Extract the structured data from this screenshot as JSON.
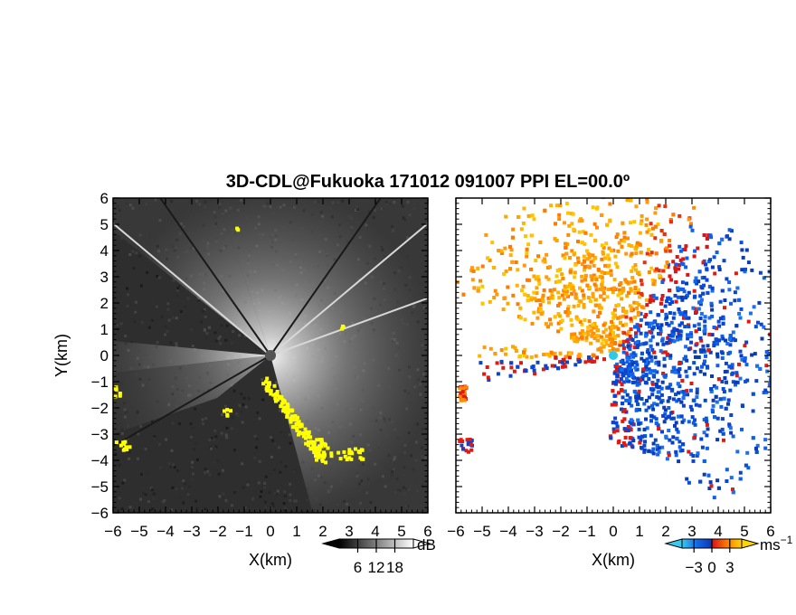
{
  "title": "3D-CDL@Fukuoka 171012 091007 PPI EL=00.0º",
  "chart_data": [
    {
      "type": "heatmap",
      "panel": "left",
      "quantity": "reflectivity",
      "xlabel": "X(km)",
      "ylabel": "Y(km)",
      "xlim": [
        -6,
        6
      ],
      "ylim": [
        -6,
        6
      ],
      "xticks": [
        "−6",
        "−5",
        "−4",
        "−3",
        "−2",
        "−1",
        "0",
        "1",
        "2",
        "3",
        "4",
        "5",
        "6"
      ],
      "yticks": [
        "6",
        "5",
        "4",
        "3",
        "2",
        "1",
        "0",
        "−1",
        "−2",
        "−3",
        "−4",
        "−5",
        "−6"
      ],
      "colorbar": {
        "unit": "dB",
        "ticks": [
          "6",
          "12",
          "18"
        ],
        "tick_values": [
          6,
          12,
          18
        ],
        "range": [
          0,
          24
        ],
        "colors": [
          "#000000",
          "#ffffff"
        ]
      },
      "highlight_color": "#ffff00",
      "colormap": [
        "#000000",
        "#ffffff"
      ]
    },
    {
      "type": "heatmap",
      "panel": "right",
      "quantity": "radial velocity",
      "xlabel": "X(km)",
      "ylabel": "",
      "xlim": [
        -6,
        6
      ],
      "ylim": [
        -6,
        6
      ],
      "xticks": [
        "−6",
        "−5",
        "−4",
        "−3",
        "−2",
        "−1",
        "0",
        "1",
        "2",
        "3",
        "4",
        "5",
        "6"
      ],
      "yticks": [
        "6",
        "5",
        "4",
        "3",
        "2",
        "1",
        "0",
        "−1",
        "−2",
        "−3",
        "−4",
        "−5",
        "−6"
      ],
      "colorbar": {
        "unit": "ms",
        "unit_sup": "−1",
        "ticks": [
          "−3",
          "0",
          "3"
        ],
        "tick_values": [
          -3,
          0,
          3
        ],
        "range": [
          -5,
          5
        ],
        "colors": [
          "#3ac8ee",
          "#0a44d0",
          "#d81818",
          "#ff7a00",
          "#ffd400"
        ]
      },
      "colormap": [
        "#3ac8ee",
        "#1468e8",
        "#0a3cb8",
        "#d81818",
        "#ff5a10",
        "#ffb400"
      ]
    }
  ]
}
